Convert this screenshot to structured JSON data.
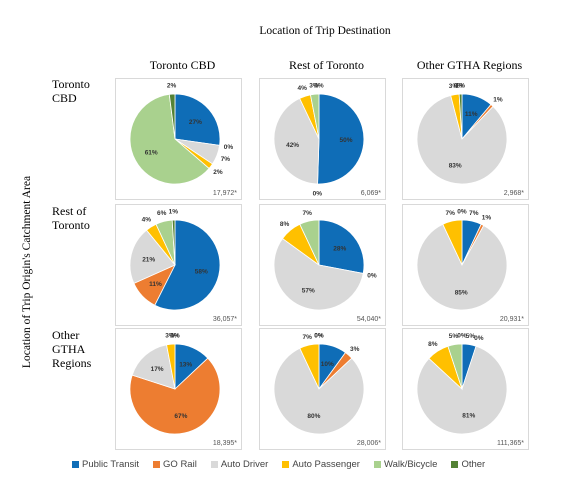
{
  "title": "Location of Trip Destination",
  "y_title": "Location of Trip Origin's Catchment Area",
  "columns": [
    "Toronto CBD",
    "Rest of Toronto",
    "Other GTHA Regions"
  ],
  "rows": [
    {
      "l1": "Toronto",
      "l2": "CBD",
      "l3": ""
    },
    {
      "l1": "Rest of",
      "l2": "Toronto",
      "l3": ""
    },
    {
      "l1": "Other",
      "l2": "GTHA",
      "l3": "Regions"
    }
  ],
  "chart_data": {
    "type": "pie",
    "series_names": [
      "Public Transit",
      "GO Rail",
      "Auto Driver",
      "Auto Passenger",
      "Walk/Bicycle",
      "Other"
    ],
    "colors": [
      "#0f6db7",
      "#ed7d31",
      "#d9d9d9",
      "#ffc000",
      "#a9d18e",
      "#548235"
    ],
    "pies": [
      {
        "row": 0,
        "col": 0,
        "n_label": "17,972*",
        "values": [
          27,
          0,
          7,
          2,
          61,
          2
        ],
        "labels": [
          "27%",
          "0%",
          "7%",
          "2%",
          "61%",
          "2%"
        ]
      },
      {
        "row": 0,
        "col": 1,
        "n_label": "6,069*",
        "values": [
          50,
          0,
          42,
          4,
          3,
          0
        ],
        "labels": [
          "50%",
          "0%",
          "42%",
          "4%",
          "3%",
          "0%"
        ]
      },
      {
        "row": 0,
        "col": 2,
        "n_label": "2,968*",
        "values": [
          11,
          1,
          83,
          3,
          0,
          1
        ],
        "labels": [
          "11%",
          "1%",
          "83%",
          "3%",
          "0%",
          "1%"
        ]
      },
      {
        "row": 1,
        "col": 0,
        "n_label": "36,057*",
        "values": [
          58,
          11,
          21,
          4,
          6,
          1
        ],
        "labels": [
          "58%",
          "11%",
          "21%",
          "4%",
          "6%",
          "1%"
        ]
      },
      {
        "row": 1,
        "col": 1,
        "n_label": "54,040*",
        "values": [
          28,
          0,
          57,
          8,
          7,
          0
        ],
        "labels": [
          "28%",
          "0%",
          "57%",
          "8%",
          "7%",
          ""
        ]
      },
      {
        "row": 1,
        "col": 2,
        "n_label": "20,931*",
        "values": [
          7,
          1,
          85,
          7,
          0,
          0
        ],
        "labels": [
          "7%",
          "1%",
          "85%",
          "7%",
          "0%",
          ""
        ]
      },
      {
        "row": 2,
        "col": 0,
        "n_label": "18,395*",
        "values": [
          13,
          67,
          17,
          3,
          0,
          0
        ],
        "labels": [
          "13%",
          "67%",
          "17%",
          "3%",
          "0%",
          "0%"
        ]
      },
      {
        "row": 2,
        "col": 1,
        "n_label": "28,006*",
        "values": [
          10,
          3,
          80,
          7,
          0,
          0
        ],
        "labels": [
          "10%",
          "3%",
          "80%",
          "7%",
          "0%",
          "0%"
        ]
      },
      {
        "row": 2,
        "col": 2,
        "n_label": "111,365*",
        "values": [
          5,
          0,
          81,
          8,
          5,
          0
        ],
        "labels": [
          "5%",
          "0%",
          "81%",
          "8%",
          "5%",
          "0%"
        ]
      }
    ]
  }
}
